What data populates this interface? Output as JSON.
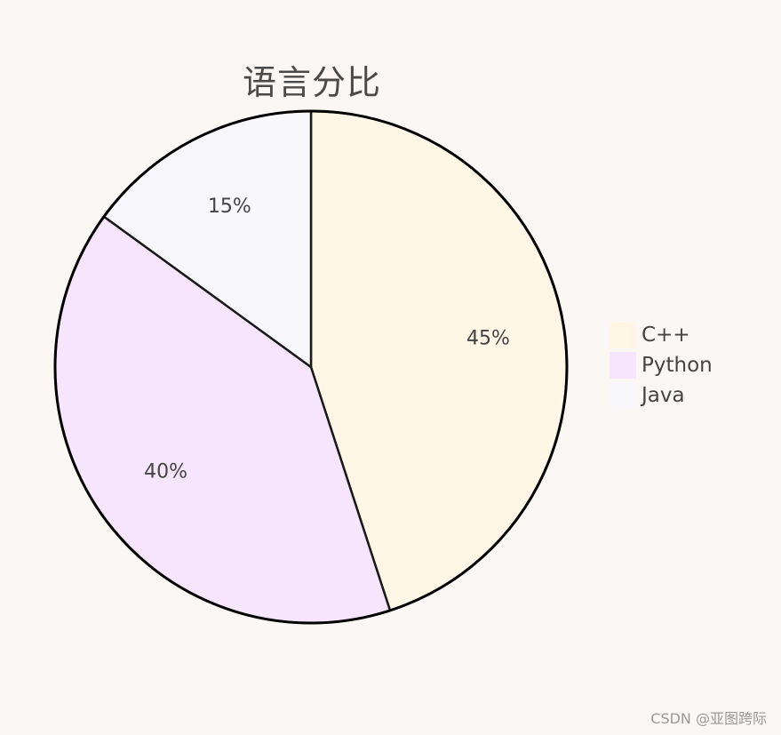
{
  "chart_data": {
    "type": "pie",
    "title": "语言分比",
    "categories": [
      "C++",
      "Python",
      "Java"
    ],
    "values": [
      45,
      40,
      15
    ],
    "labels": [
      "45%",
      "40%",
      "15%"
    ],
    "colors": [
      "#fff6e5",
      "#f7e4fd",
      "#f8f7fc"
    ],
    "legend_placement": "right",
    "start_angle": "12 o'clock",
    "direction": "clockwise"
  },
  "watermark": "CSDN @亚图跨际"
}
